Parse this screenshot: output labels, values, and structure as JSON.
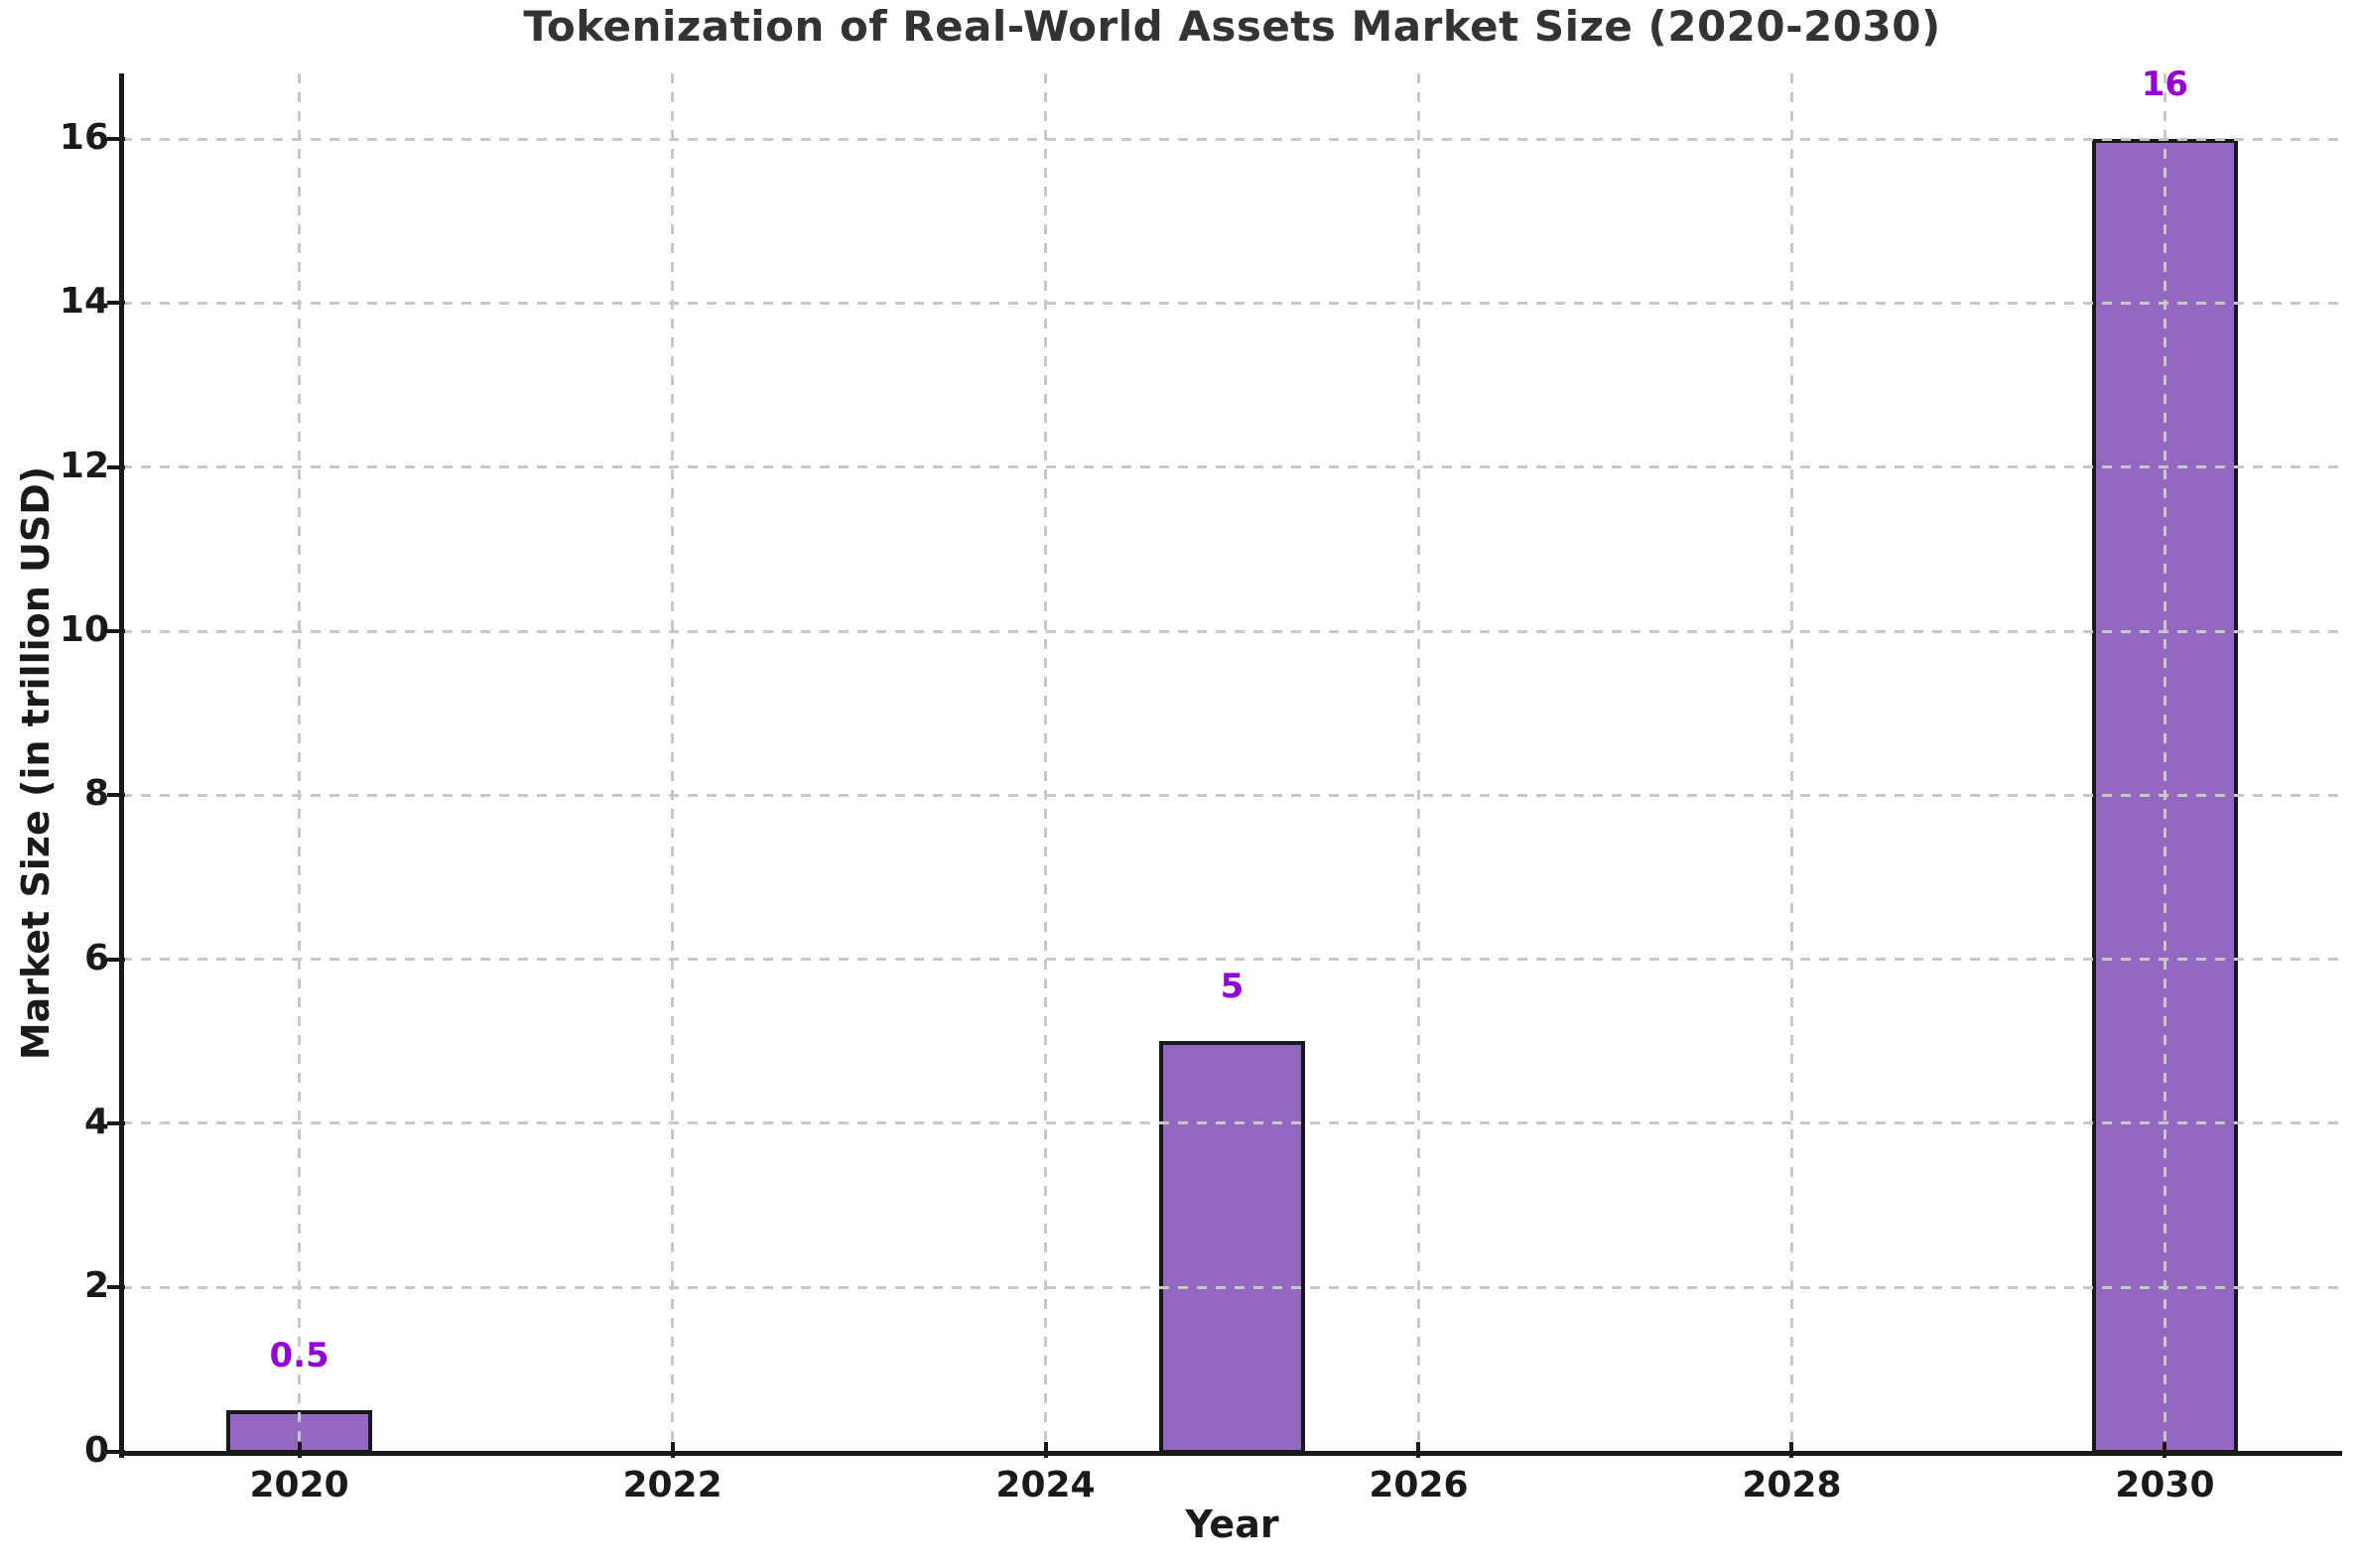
{
  "chart_data": {
    "type": "bar",
    "title": "Tokenization of Real-World Assets Market Size (2020-2030)",
    "xlabel": "Year",
    "ylabel": "Market Size (in trillion USD)",
    "x": [
      2020,
      2025,
      2030
    ],
    "values": [
      0.5,
      5,
      16
    ],
    "value_labels": [
      "0.5",
      "5",
      "16"
    ],
    "bar_width": 0.78,
    "xlim": [
      2019.05,
      2030.95
    ],
    "ylim": [
      0,
      16.8
    ],
    "xticks": [
      2020,
      2022,
      2024,
      2026,
      2028,
      2030
    ],
    "xtick_labels": [
      "2020",
      "2022",
      "2024",
      "2026",
      "2028",
      "2030"
    ],
    "yticks": [
      0,
      2,
      4,
      6,
      8,
      10,
      12,
      14,
      16
    ],
    "ytick_labels": [
      "0",
      "2",
      "4",
      "6",
      "8",
      "10",
      "12",
      "14",
      "16"
    ],
    "grid": {
      "visible": true,
      "style": "dashed",
      "axis": "both"
    },
    "legend": null,
    "colors": {
      "bar_fill": "#9468c0",
      "bar_edge": "#1a1a1a",
      "value_label": "#9400d3",
      "tick_label": "#1a1a1a",
      "title": "#333333",
      "axis_label": "#1a1a1a",
      "grid": "#c8c8c8",
      "spine": "#1a1a1a",
      "background": "#ffffff"
    }
  }
}
